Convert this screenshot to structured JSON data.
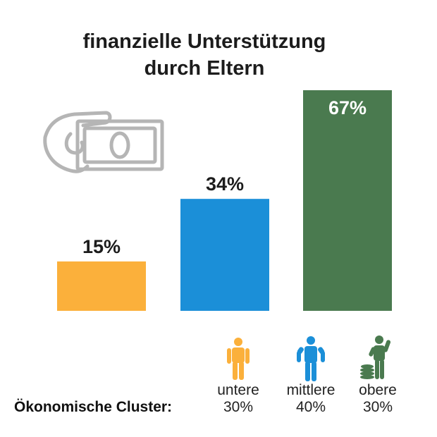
{
  "chart_data": {
    "type": "bar",
    "title": [
      "finanzielle Unterstützung",
      "durch Eltern"
    ],
    "categories": [
      "untere",
      "mittlere",
      "obere"
    ],
    "category_shares": [
      "30%",
      "40%",
      "30%"
    ],
    "values": [
      15,
      34,
      67
    ],
    "value_labels": [
      "15%",
      "34%",
      "67%"
    ],
    "colors": [
      "#fbb03b",
      "#1b8fd8",
      "#4a7a4f"
    ],
    "xlabel": "Ökonomische Cluster:",
    "ylim": [
      0,
      67
    ],
    "grid": false,
    "legend": "none"
  },
  "icons": {
    "title_illustration": "hand-holding-money-icon",
    "cluster_icons": [
      "person-lower-icon",
      "person-middle-icon",
      "person-upper-with-coins-icon"
    ]
  }
}
